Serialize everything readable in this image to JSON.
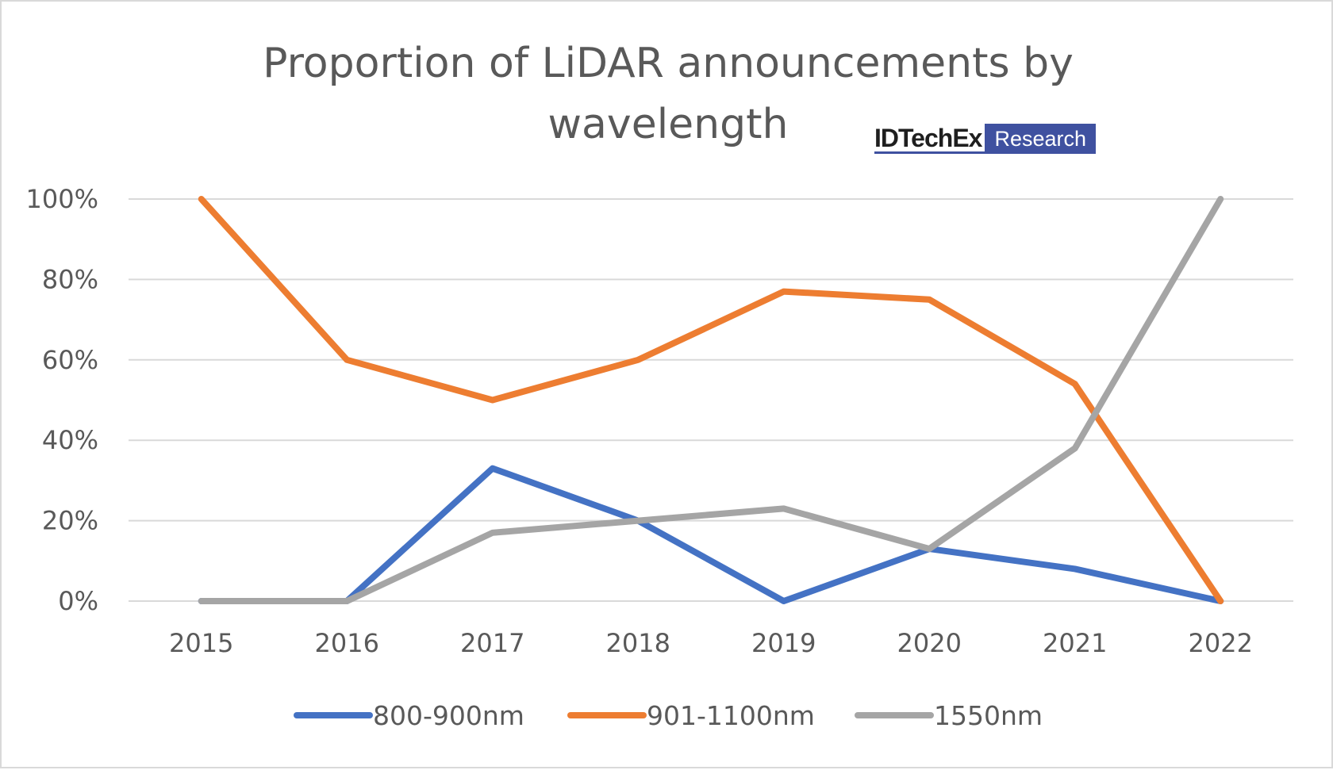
{
  "chart_data": {
    "type": "line",
    "title": "Proportion of LiDAR announcements by wavelength",
    "title_lines": [
      "Proportion of LiDAR announcements by",
      "wavelength"
    ],
    "xlabel": "",
    "ylabel": "",
    "categories": [
      "2015",
      "2016",
      "2017",
      "2018",
      "2019",
      "2020",
      "2021",
      "2022"
    ],
    "yticks": [
      "0%",
      "20%",
      "40%",
      "60%",
      "80%",
      "100%"
    ],
    "ylim": [
      0,
      100
    ],
    "grid": true,
    "legend_position": "bottom",
    "series": [
      {
        "name": "800-900nm",
        "color": "#4472c4",
        "values": [
          0,
          0,
          33,
          20,
          0,
          13,
          8,
          0
        ]
      },
      {
        "name": "901-1100nm",
        "color": "#ed7d31",
        "values": [
          100,
          60,
          50,
          60,
          77,
          75,
          54,
          0
        ]
      },
      {
        "name": "1550nm",
        "color": "#a5a5a5",
        "values": [
          0,
          0,
          17,
          20,
          23,
          13,
          38,
          100
        ]
      }
    ]
  },
  "logo": {
    "brand": "IDTechEx",
    "tag": "Research"
  }
}
